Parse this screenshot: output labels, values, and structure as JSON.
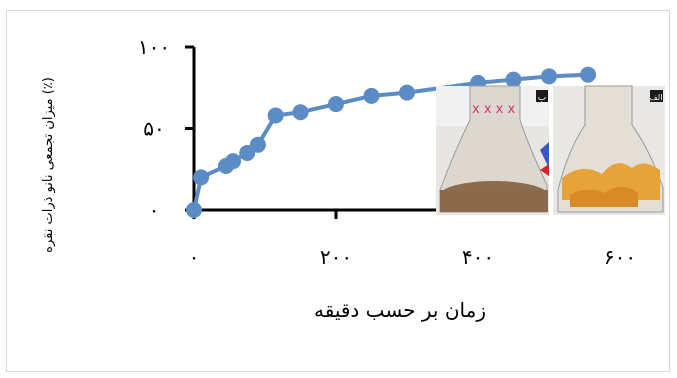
{
  "chart_data": {
    "type": "line",
    "xlabel": "زمان بر حسب دقیقه",
    "ylabel": "میزان تجمعی نانو ذرات نقره (٪)",
    "xlim": [
      0,
      600
    ],
    "ylim": [
      0,
      100
    ],
    "xticks": [
      0,
      200,
      400,
      600
    ],
    "yticks": [
      0,
      50,
      100
    ],
    "xtick_labels": [
      "۰",
      "۲۰۰",
      "۴۰۰",
      "۶۰۰"
    ],
    "ytick_labels": [
      "۰",
      "۵۰",
      "۱۰۰"
    ],
    "grid": false,
    "color": "#5B8CC5",
    "series": [
      {
        "x": [
          0,
          10,
          45,
          55,
          75,
          90,
          115,
          150,
          200,
          250,
          300,
          400,
          450,
          500,
          555
        ],
        "y": [
          0,
          20,
          27,
          30,
          35,
          40,
          58,
          60,
          65,
          70,
          72,
          78,
          80,
          82,
          83
        ]
      }
    ],
    "inset_photos": [
      {
        "label": "ب",
        "subject": "flask-with-brown-sediment"
      },
      {
        "label": "الف",
        "subject": "flask-with-yellow-pieces"
      }
    ]
  }
}
